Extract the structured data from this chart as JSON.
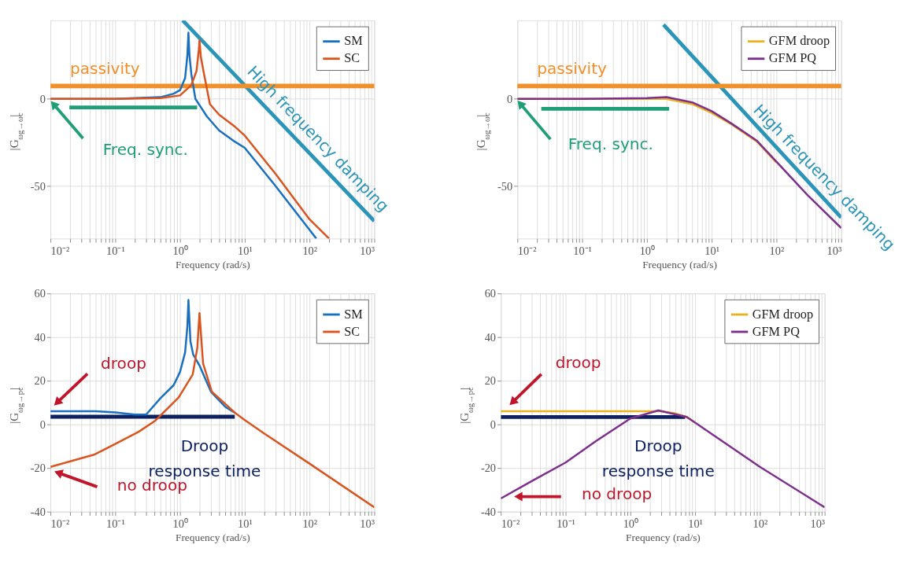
{
  "chart_data": [
    {
      "type": "line",
      "xlabel": "Frequency (rad/s)",
      "ylabel": "|G$_{ωg→ωc}$|",
      "log": "x",
      "grid": true,
      "legend": "top right",
      "xlim": [
        0.01,
        1000
      ],
      "ylim": [
        -80,
        45
      ],
      "yticks": [
        -50,
        0
      ],
      "xticks": [
        {
          "value": 0.01,
          "label": "10⁻²"
        },
        {
          "value": 0.02,
          "label": null
        },
        {
          "value": 0.03,
          "label": null
        },
        {
          "value": 0.04,
          "label": null
        },
        {
          "value": 0.05,
          "label": null
        },
        {
          "value": 0.06,
          "label": null
        },
        {
          "value": 0.07,
          "label": null
        },
        {
          "value": 0.08,
          "label": null
        },
        {
          "value": 0.09,
          "label": null
        },
        {
          "value": 0.1,
          "label": "10⁻¹"
        },
        {
          "value": 0.2,
          "label": null
        },
        {
          "value": 0.3,
          "label": null
        },
        {
          "value": 0.4,
          "label": null
        },
        {
          "value": 0.5,
          "label": null
        },
        {
          "value": 0.6,
          "label": null
        },
        {
          "value": 0.7,
          "label": null
        },
        {
          "value": 0.8,
          "label": null
        },
        {
          "value": 0.9,
          "label": null
        },
        {
          "value": 1,
          "label": "10⁰"
        },
        {
          "value": 2,
          "label": null
        },
        {
          "value": 3,
          "label": null
        },
        {
          "value": 4,
          "label": null
        },
        {
          "value": 5,
          "label": null
        },
        {
          "value": 6,
          "label": null
        },
        {
          "value": 7,
          "label": null
        },
        {
          "value": 8,
          "label": null
        },
        {
          "value": 9,
          "label": null
        },
        {
          "value": 10,
          "label": "10¹"
        },
        {
          "value": 20,
          "label": null
        },
        {
          "value": 30,
          "label": null
        },
        {
          "value": 40,
          "label": null
        },
        {
          "value": 50,
          "label": null
        },
        {
          "value": 60,
          "label": null
        },
        {
          "value": 70,
          "label": null
        },
        {
          "value": 80,
          "label": null
        },
        {
          "value": 90,
          "label": null
        },
        {
          "value": 100,
          "label": "10²"
        },
        {
          "value": 200,
          "label": null
        },
        {
          "value": 300,
          "label": null
        },
        {
          "value": 400,
          "label": null
        },
        {
          "value": 500,
          "label": null
        },
        {
          "value": 600,
          "label": null
        },
        {
          "value": 700,
          "label": null
        },
        {
          "value": 800,
          "label": null
        },
        {
          "value": 900,
          "label": null
        },
        {
          "value": 1000,
          "label": "10³"
        }
      ],
      "series": [
        {
          "name": "SM",
          "color": "#1a6fbf",
          "x": [
            0.01,
            0.1,
            0.5,
            0.8,
            1.0,
            1.2,
            1.3,
            1.35,
            1.4,
            1.5,
            1.73,
            2.6,
            4,
            7.1,
            10,
            30,
            100,
            127
          ],
          "values": [
            0,
            0,
            1,
            3,
            5,
            12,
            25,
            38,
            25,
            14,
            0,
            -10,
            -18,
            -24.6,
            -28,
            -50,
            -75,
            -80
          ]
        },
        {
          "name": "SC",
          "color": "#d9541e",
          "x": [
            0.01,
            0.1,
            0.5,
            1.0,
            1.5,
            1.8,
            1.95,
            2.0,
            2.1,
            2.3,
            2.9,
            4,
            7.1,
            10,
            30,
            100,
            200
          ],
          "values": [
            0,
            0,
            0.5,
            2,
            8,
            16,
            28,
            33.6,
            24,
            16,
            -3,
            -9,
            -16,
            -21,
            -43,
            -69,
            -80
          ]
        },
        {
          "type": "line",
          "color": "#2a95b8",
          "x": [
            1.1,
            1000
          ],
          "values": [
            45,
            -70
          ]
        },
        {
          "type": "line",
          "color": "#1f9e78",
          "x": [
            0.0196,
            1.84
          ],
          "values": [
            -4.9,
            -4.9
          ]
        }
      ],
      "ref_lines": [
        {
          "axis": "y",
          "value": 7.4,
          "label": "passivity",
          "color": "#f0902a"
        }
      ],
      "annotations": [
        {
          "text": "Freq. sync.",
          "x": 0.0115,
          "y": -3.6
        },
        {
          "text": "High frequency damping",
          "x": 62,
          "y": -23
        }
      ]
    },
    {
      "type": "line",
      "xlabel": "Frequency (rad/s)",
      "ylabel": "|G$_{ωg→ωc}$|",
      "log": "x",
      "grid": true,
      "legend": "top right",
      "xlim": [
        0.01,
        1000
      ],
      "ylim": [
        -80,
        45
      ],
      "yticks": [
        -50,
        0
      ],
      "xticks": [
        {
          "value": 0.01,
          "label": "10⁻²"
        },
        {
          "value": 0.02,
          "label": null
        },
        {
          "value": 0.03,
          "label": null
        },
        {
          "value": 0.04,
          "label": null
        },
        {
          "value": 0.05,
          "label": null
        },
        {
          "value": 0.06,
          "label": null
        },
        {
          "value": 0.07,
          "label": null
        },
        {
          "value": 0.08,
          "label": null
        },
        {
          "value": 0.09,
          "label": null
        },
        {
          "value": 0.1,
          "label": "10⁻¹"
        },
        {
          "value": 0.2,
          "label": null
        },
        {
          "value": 0.3,
          "label": null
        },
        {
          "value": 0.4,
          "label": null
        },
        {
          "value": 0.5,
          "label": null
        },
        {
          "value": 0.6,
          "label": null
        },
        {
          "value": 0.7,
          "label": null
        },
        {
          "value": 0.8,
          "label": null
        },
        {
          "value": 0.9,
          "label": null
        },
        {
          "value": 1,
          "label": "10⁰"
        },
        {
          "value": 2,
          "label": null
        },
        {
          "value": 3,
          "label": null
        },
        {
          "value": 4,
          "label": null
        },
        {
          "value": 5,
          "label": null
        },
        {
          "value": 6,
          "label": null
        },
        {
          "value": 7,
          "label": null
        },
        {
          "value": 8,
          "label": null
        },
        {
          "value": 9,
          "label": null
        },
        {
          "value": 10,
          "label": "10¹"
        },
        {
          "value": 20,
          "label": null
        },
        {
          "value": 30,
          "label": null
        },
        {
          "value": 40,
          "label": null
        },
        {
          "value": 50,
          "label": null
        },
        {
          "value": 60,
          "label": null
        },
        {
          "value": 70,
          "label": null
        },
        {
          "value": 80,
          "label": null
        },
        {
          "value": 90,
          "label": null
        },
        {
          "value": 100,
          "label": "10²"
        },
        {
          "value": 200,
          "label": null
        },
        {
          "value": 300,
          "label": null
        },
        {
          "value": 400,
          "label": null
        },
        {
          "value": 500,
          "label": null
        },
        {
          "value": 600,
          "label": null
        },
        {
          "value": 700,
          "label": null
        },
        {
          "value": 800,
          "label": null
        },
        {
          "value": 900,
          "label": null
        },
        {
          "value": 1000,
          "label": "10³"
        }
      ],
      "series": [
        {
          "name": "GFM droop",
          "color": "#e9b222",
          "x": [
            0.01,
            0.1,
            1,
            2,
            5,
            10,
            20,
            50,
            100
          ],
          "values": [
            0,
            0,
            0,
            0,
            -3,
            -8,
            -14.5,
            -24.5,
            -36.5
          ]
        },
        {
          "name": "GFM PQ",
          "color": "#7e2f8e",
          "x": [
            0.01,
            0.1,
            1,
            2,
            5,
            10,
            20,
            50,
            100,
            300,
            1000
          ],
          "values": [
            0,
            0,
            0.5,
            1,
            -2,
            -7,
            -14,
            -24,
            -36,
            -55,
            -74
          ]
        },
        {
          "type": "line",
          "color": "#2a95b8",
          "x": [
            1.8,
            1000
          ],
          "values": [
            42.5,
            -68
          ]
        },
        {
          "type": "line",
          "color": "#1f9e78",
          "x": [
            0.0234,
            2.2
          ],
          "values": [
            -5.7,
            -5.7
          ]
        }
      ],
      "ref_lines": [
        {
          "axis": "y",
          "value": 7.4,
          "label": "passivity",
          "color": "#f0902a"
        }
      ],
      "annotations": [
        {
          "text": "Freq. sync.",
          "x": 0.0114,
          "y": -3.3
        },
        {
          "text": "High frequency damping",
          "x": 250,
          "y": -45
        }
      ]
    },
    {
      "type": "line",
      "xlabel": "Frequency (rad/s)",
      "ylabel": "|G$_{ωg→pc}$|",
      "log": "x",
      "grid": true,
      "legend": "top right",
      "xlim": [
        0.01,
        1000
      ],
      "ylim": [
        -40,
        60
      ],
      "yticks": [
        -40,
        -20,
        0,
        20,
        40,
        60
      ],
      "xticks": [
        {
          "value": 0.01,
          "label": "10⁻²"
        },
        {
          "value": 0.02,
          "label": null
        },
        {
          "value": 0.03,
          "label": null
        },
        {
          "value": 0.04,
          "label": null
        },
        {
          "value": 0.05,
          "label": null
        },
        {
          "value": 0.06,
          "label": null
        },
        {
          "value": 0.07,
          "label": null
        },
        {
          "value": 0.08,
          "label": null
        },
        {
          "value": 0.09,
          "label": null
        },
        {
          "value": 0.1,
          "label": "10⁻¹"
        },
        {
          "value": 0.2,
          "label": null
        },
        {
          "value": 0.3,
          "label": null
        },
        {
          "value": 0.4,
          "label": null
        },
        {
          "value": 0.5,
          "label": null
        },
        {
          "value": 0.6,
          "label": null
        },
        {
          "value": 0.7,
          "label": null
        },
        {
          "value": 0.8,
          "label": null
        },
        {
          "value": 0.9,
          "label": null
        },
        {
          "value": 1,
          "label": "10⁰"
        },
        {
          "value": 2,
          "label": null
        },
        {
          "value": 3,
          "label": null
        },
        {
          "value": 4,
          "label": null
        },
        {
          "value": 5,
          "label": null
        },
        {
          "value": 6,
          "label": null
        },
        {
          "value": 7,
          "label": null
        },
        {
          "value": 8,
          "label": null
        },
        {
          "value": 9,
          "label": null
        },
        {
          "value": 10,
          "label": "10¹"
        },
        {
          "value": 20,
          "label": null
        },
        {
          "value": 30,
          "label": null
        },
        {
          "value": 40,
          "label": null
        },
        {
          "value": 50,
          "label": null
        },
        {
          "value": 60,
          "label": null
        },
        {
          "value": 70,
          "label": null
        },
        {
          "value": 80,
          "label": null
        },
        {
          "value": 90,
          "label": null
        },
        {
          "value": 100,
          "label": "10²"
        },
        {
          "value": 200,
          "label": null
        },
        {
          "value": 300,
          "label": null
        },
        {
          "value": 400,
          "label": null
        },
        {
          "value": 500,
          "label": null
        },
        {
          "value": 600,
          "label": null
        },
        {
          "value": 700,
          "label": null
        },
        {
          "value": 800,
          "label": null
        },
        {
          "value": 900,
          "label": null
        },
        {
          "value": 1000,
          "label": "10³"
        }
      ],
      "series": [
        {
          "name": "SM",
          "color": "#1a6fbf",
          "x": [
            0.01,
            0.05,
            0.1,
            0.2,
            0.3,
            0.5,
            0.8,
            1.0,
            1.2,
            1.3,
            1.35,
            1.45,
            1.6,
            2.0,
            3,
            5,
            7.2
          ],
          "values": [
            6,
            6,
            5.5,
            4.5,
            4.5,
            12,
            18,
            24,
            33,
            45,
            57,
            38,
            32,
            27,
            15,
            8,
            5.1
          ]
        },
        {
          "name": "SC",
          "color": "#d9541e",
          "x": [
            0.01,
            0.047,
            0.1,
            0.23,
            0.42,
            0.95,
            1.57,
            1.85,
            2.0,
            2.27,
            3.1,
            7.2,
            10,
            19.5,
            100,
            1000
          ],
          "values": [
            -19.5,
            -13.9,
            -9,
            -3.4,
            1.8,
            12.3,
            22.8,
            35,
            51,
            28,
            15,
            5.1,
            2,
            -4,
            -18,
            -38
          ]
        },
        {
          "type": "line",
          "color": "#0d2161",
          "x": [
            0.01,
            7
          ],
          "values": [
            3.5,
            3.5
          ]
        }
      ],
      "annotations": [
        {
          "text": "droop",
          "x": 0.0131,
          "y": 10.4
        },
        {
          "text": "no droop",
          "x": 0.0138,
          "y": -22.4
        },
        {
          "text": "Droop response time",
          "x": 2.4,
          "y": 3.5
        }
      ]
    },
    {
      "type": "line",
      "xlabel": "Frequency (rad/s)",
      "ylabel": "|G$_{ωg→pc}$|",
      "log": "x",
      "grid": true,
      "legend": "top right",
      "xlim": [
        0.01,
        1000
      ],
      "ylim": [
        -40,
        60
      ],
      "yticks": [
        -40,
        -20,
        0,
        20,
        40,
        60
      ],
      "xticks": [
        {
          "value": 0.01,
          "label": "10⁻²"
        },
        {
          "value": 0.02,
          "label": null
        },
        {
          "value": 0.03,
          "label": null
        },
        {
          "value": 0.04,
          "label": null
        },
        {
          "value": 0.05,
          "label": null
        },
        {
          "value": 0.06,
          "label": null
        },
        {
          "value": 0.07,
          "label": null
        },
        {
          "value": 0.08,
          "label": null
        },
        {
          "value": 0.09,
          "label": null
        },
        {
          "value": 0.1,
          "label": "10⁻¹"
        },
        {
          "value": 0.2,
          "label": null
        },
        {
          "value": 0.3,
          "label": null
        },
        {
          "value": 0.4,
          "label": null
        },
        {
          "value": 0.5,
          "label": null
        },
        {
          "value": 0.6,
          "label": null
        },
        {
          "value": 0.7,
          "label": null
        },
        {
          "value": 0.8,
          "label": null
        },
        {
          "value": 0.9,
          "label": null
        },
        {
          "value": 1,
          "label": "10⁰"
        },
        {
          "value": 2,
          "label": null
        },
        {
          "value": 3,
          "label": null
        },
        {
          "value": 4,
          "label": null
        },
        {
          "value": 5,
          "label": null
        },
        {
          "value": 6,
          "label": null
        },
        {
          "value": 7,
          "label": null
        },
        {
          "value": 8,
          "label": null
        },
        {
          "value": 9,
          "label": null
        },
        {
          "value": 10,
          "label": "10¹"
        },
        {
          "value": 20,
          "label": null
        },
        {
          "value": 30,
          "label": null
        },
        {
          "value": 40,
          "label": null
        },
        {
          "value": 50,
          "label": null
        },
        {
          "value": 60,
          "label": null
        },
        {
          "value": 70,
          "label": null
        },
        {
          "value": 80,
          "label": null
        },
        {
          "value": 90,
          "label": null
        },
        {
          "value": 100,
          "label": "10²"
        },
        {
          "value": 200,
          "label": null
        },
        {
          "value": 300,
          "label": null
        },
        {
          "value": 400,
          "label": null
        },
        {
          "value": 500,
          "label": null
        },
        {
          "value": 600,
          "label": null
        },
        {
          "value": 700,
          "label": null
        },
        {
          "value": 800,
          "label": null
        },
        {
          "value": 900,
          "label": null
        },
        {
          "value": 1000,
          "label": "10³"
        }
      ],
      "series": [
        {
          "name": "GFM droop",
          "color": "#e9b222",
          "x": [
            0.01,
            1,
            3,
            5,
            7.4,
            10
          ],
          "values": [
            6,
            6,
            6,
            5,
            3.4,
            0.8
          ]
        },
        {
          "name": "GFM PQ",
          "color": "#7e2f8e",
          "x": [
            0.01,
            0.03,
            0.1,
            0.3,
            1,
            2.7,
            7.4,
            10,
            100,
            1000
          ],
          "values": [
            -34,
            -26,
            -17.5,
            -7.5,
            2.7,
            6.4,
            3.4,
            0.8,
            -19.5,
            -38
          ]
        },
        {
          "type": "line",
          "color": "#0d2161",
          "x": [
            0.01,
            7
          ],
          "values": [
            3.4,
            3.4
          ]
        }
      ],
      "annotations": [
        {
          "text": "droop",
          "x": 0.0157,
          "y": 10.6
        },
        "no droop",
        {
          "text": "Droop response time",
          "x": 2.7,
          "y": 3.4
        }
      ]
    }
  ]
}
